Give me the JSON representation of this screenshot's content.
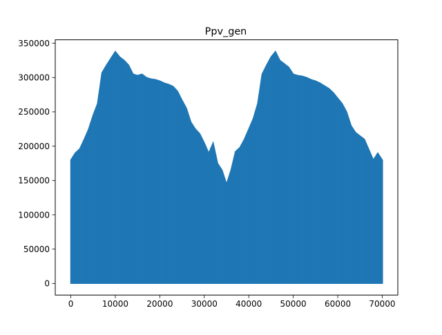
{
  "chart_data": {
    "type": "line",
    "title": "Ppv_gen",
    "xlabel": "",
    "ylabel": "",
    "xlim": [
      -3500,
      73500
    ],
    "ylim": [
      -17000,
      355000
    ],
    "xticks": [
      0,
      10000,
      20000,
      30000,
      40000,
      50000,
      60000,
      70000
    ],
    "xtick_labels": [
      "0",
      "10000",
      "20000",
      "30000",
      "40000",
      "50000",
      "60000",
      "70000"
    ],
    "yticks": [
      0,
      50000,
      100000,
      150000,
      200000,
      250000,
      300000,
      350000
    ],
    "ytick_labels": [
      "0",
      "50000",
      "100000",
      "150000",
      "200000",
      "250000",
      "300000",
      "350000"
    ],
    "grid": false,
    "legend": "none",
    "line_color": "#1f77b4",
    "x_range": [
      0,
      70080
    ],
    "series": [
      {
        "x": [
          0,
          1000,
          2000,
          3000,
          4000,
          5000,
          6000,
          7000,
          8000,
          9000,
          10000,
          11000,
          12000,
          13000,
          14000,
          15000,
          16000,
          17000,
          18000,
          19000,
          20000,
          21000,
          22000,
          23000,
          24000,
          25000,
          26000,
          27000,
          28000,
          29000,
          30000,
          31000,
          32000,
          33000,
          34000,
          35000,
          36000,
          37000,
          38000,
          39000,
          40000,
          41000,
          42000,
          43000,
          44000,
          45000,
          46000,
          47000,
          48000,
          49000,
          50000,
          51000,
          52000,
          53000,
          54000,
          55000,
          56000,
          57000,
          58000,
          59000,
          60000,
          61000,
          62000,
          63000,
          64000,
          65000,
          66000,
          67000,
          68000,
          69000,
          70000
        ],
        "y_max": [
          180000,
          190000,
          196000,
          210000,
          225000,
          245000,
          262000,
          307000,
          318000,
          328000,
          338000,
          330000,
          325000,
          318000,
          305000,
          303000,
          305000,
          300000,
          298000,
          297000,
          295000,
          292000,
          290000,
          287000,
          280000,
          267000,
          255000,
          235000,
          225000,
          218000,
          205000,
          190000,
          205000,
          175000,
          165000,
          145000,
          165000,
          192000,
          198000,
          210000,
          225000,
          240000,
          262000,
          305000,
          318000,
          330000,
          338000,
          325000,
          320000,
          315000,
          305000,
          303000,
          302000,
          300000,
          297000,
          295000,
          292000,
          288000,
          284000,
          278000,
          270000,
          262000,
          250000,
          230000,
          220000,
          215000,
          210000,
          195000,
          180000,
          190000,
          180000
        ]
      }
    ]
  }
}
